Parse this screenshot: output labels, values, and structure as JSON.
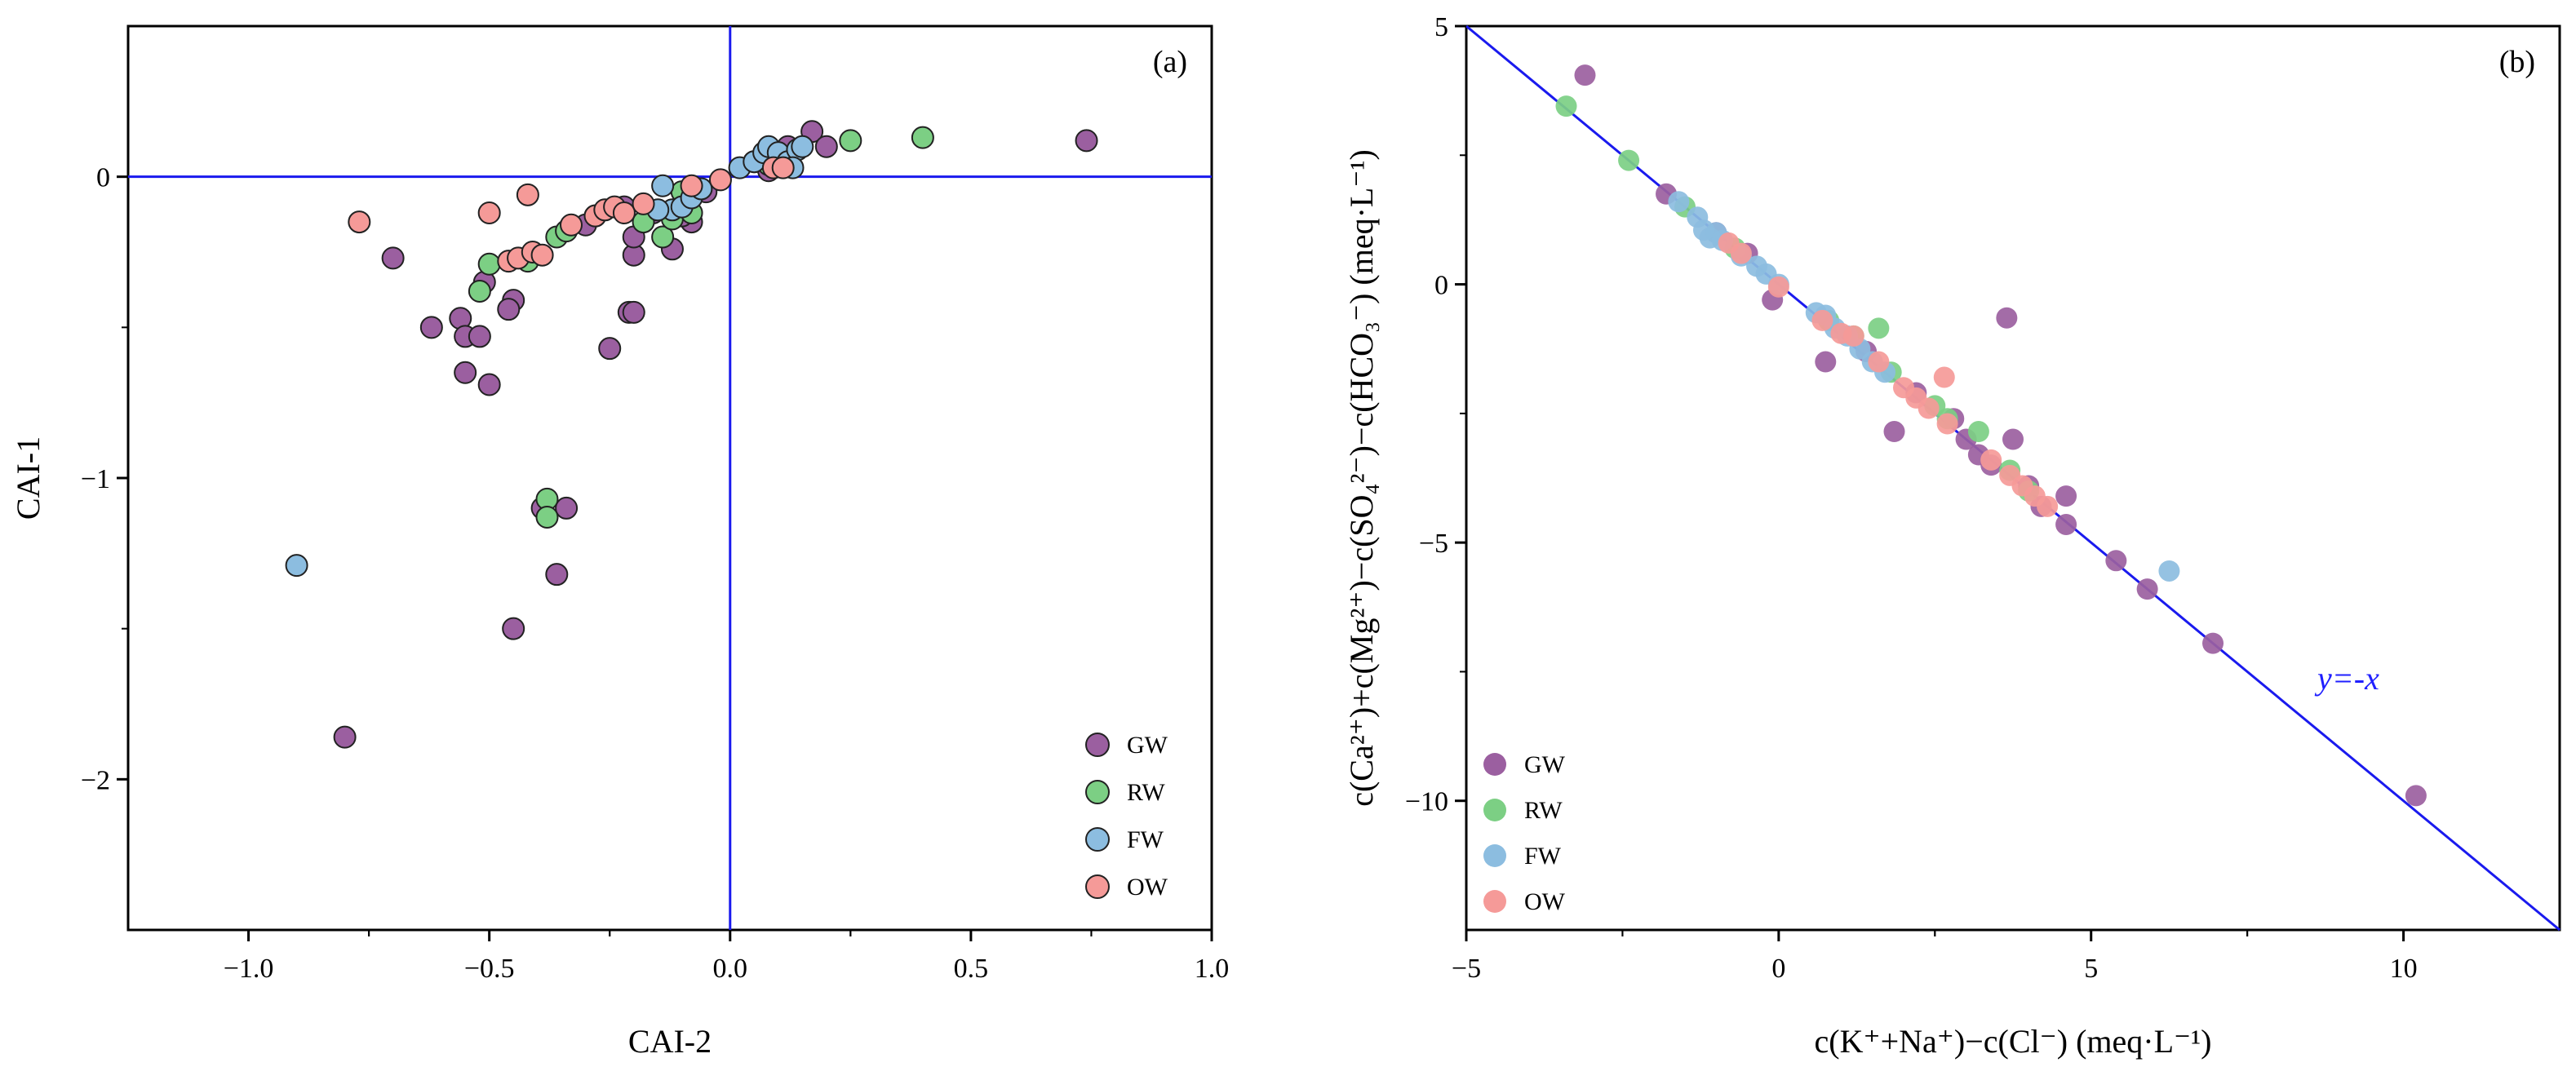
{
  "colors": {
    "GW": "#9b5fa0",
    "RW": "#7ccf84",
    "FW": "#8cbde0",
    "OW": "#f59a98",
    "reference": "#1a1aee",
    "axis": "#000000"
  },
  "chart_data": [
    {
      "type": "scatter",
      "panel": "(a)",
      "xlabel": "CAI-2",
      "ylabel": "CAI-1",
      "xlim": [
        -1.25,
        1.0
      ],
      "ylim": [
        -2.5,
        0.5
      ],
      "xticks": [
        -1.0,
        -0.5,
        0.0,
        0.5,
        1.0
      ],
      "xtick_labels": [
        "−1.0",
        "−0.5",
        "0.0",
        "0.5",
        "1.0"
      ],
      "yticks": [
        -2,
        -1,
        0
      ],
      "ytick_labels": [
        "−2",
        "−1",
        "0"
      ],
      "reference_lines": [
        {
          "type": "horizontal",
          "y": 0
        },
        {
          "type": "vertical",
          "x": 0
        }
      ],
      "legend_position": "bottom-right",
      "grid": false,
      "series": [
        {
          "name": "GW",
          "points": [
            [
              0.74,
              0.12
            ],
            [
              0.17,
              0.15
            ],
            [
              0.2,
              0.1
            ],
            [
              0.12,
              0.1
            ],
            [
              -0.7,
              -0.27
            ],
            [
              -0.62,
              -0.5
            ],
            [
              -0.56,
              -0.47
            ],
            [
              -0.55,
              -0.53
            ],
            [
              -0.52,
              -0.53
            ],
            [
              -0.55,
              -0.65
            ],
            [
              -0.5,
              -0.69
            ],
            [
              -0.51,
              -0.35
            ],
            [
              -0.45,
              -0.41
            ],
            [
              -0.46,
              -0.44
            ],
            [
              -0.25,
              -0.57
            ],
            [
              -0.21,
              -0.45
            ],
            [
              -0.2,
              -0.45
            ],
            [
              -0.2,
              -0.26
            ],
            [
              -0.2,
              -0.2
            ],
            [
              -0.12,
              -0.24
            ],
            [
              -0.08,
              -0.15
            ],
            [
              -0.16,
              -0.12
            ],
            [
              -0.1,
              -0.13
            ],
            [
              -0.39,
              -1.1
            ],
            [
              -0.34,
              -1.1
            ],
            [
              -0.36,
              -1.32
            ],
            [
              -0.45,
              -1.5
            ],
            [
              -0.8,
              -1.86
            ],
            [
              -0.28,
              -0.13
            ],
            [
              -0.3,
              -0.16
            ],
            [
              -0.22,
              -0.1
            ],
            [
              -0.05,
              -0.05
            ],
            [
              0.05,
              0.05
            ],
            [
              0.08,
              0.02
            ]
          ]
        },
        {
          "name": "RW",
          "points": [
            [
              0.4,
              0.13
            ],
            [
              0.25,
              0.12
            ],
            [
              0.1,
              0.06
            ],
            [
              0.08,
              0.04
            ],
            [
              -0.52,
              -0.38
            ],
            [
              -0.5,
              -0.29
            ],
            [
              -0.42,
              -0.28
            ],
            [
              -0.36,
              -0.2
            ],
            [
              -0.34,
              -0.18
            ],
            [
              -0.14,
              -0.2
            ],
            [
              -0.12,
              -0.14
            ],
            [
              -0.08,
              -0.12
            ],
            [
              -0.1,
              -0.05
            ],
            [
              -0.18,
              -0.15
            ],
            [
              -0.38,
              -1.07
            ],
            [
              -0.38,
              -1.13
            ]
          ]
        },
        {
          "name": "FW",
          "points": [
            [
              -0.9,
              -1.29
            ],
            [
              -0.14,
              -0.03
            ],
            [
              -0.12,
              -0.11
            ],
            [
              -0.1,
              -0.1
            ],
            [
              -0.08,
              -0.07
            ],
            [
              -0.15,
              -0.11
            ],
            [
              0.02,
              0.03
            ],
            [
              0.05,
              0.05
            ],
            [
              0.07,
              0.08
            ],
            [
              0.08,
              0.1
            ],
            [
              0.1,
              0.08
            ],
            [
              0.12,
              0.05
            ],
            [
              0.14,
              0.09
            ],
            [
              0.15,
              0.1
            ],
            [
              0.13,
              0.03
            ],
            [
              -0.06,
              -0.04
            ]
          ]
        },
        {
          "name": "OW",
          "points": [
            [
              -0.77,
              -0.15
            ],
            [
              -0.5,
              -0.12
            ],
            [
              -0.42,
              -0.06
            ],
            [
              -0.46,
              -0.28
            ],
            [
              -0.44,
              -0.27
            ],
            [
              -0.41,
              -0.25
            ],
            [
              -0.39,
              -0.26
            ],
            [
              -0.33,
              -0.16
            ],
            [
              -0.28,
              -0.13
            ],
            [
              -0.26,
              -0.11
            ],
            [
              -0.24,
              -0.1
            ],
            [
              -0.22,
              -0.12
            ],
            [
              -0.18,
              -0.09
            ],
            [
              -0.08,
              -0.03
            ],
            [
              -0.02,
              -0.01
            ],
            [
              0.09,
              0.03
            ],
            [
              0.11,
              0.03
            ]
          ]
        }
      ]
    },
    {
      "type": "scatter",
      "panel": "(b)",
      "xlabel": "c(K⁺+Na⁺)−c(Cl⁻) (meq·L⁻¹)",
      "ylabel": "c(Ca²⁺)+c(Mg²⁺)−c(SO₄²⁻)−c(HCO₃⁻) (meq·L⁻¹)",
      "xlim": [
        -5,
        12.5
      ],
      "ylim": [
        -12.5,
        5
      ],
      "xticks": [
        -5,
        0,
        5,
        10
      ],
      "xtick_labels": [
        "−5",
        "0",
        "5",
        "10"
      ],
      "yticks": [
        -10,
        -5,
        0,
        5
      ],
      "ytick_labels": [
        "−10",
        "−5",
        "0",
        "5"
      ],
      "reference_lines": [
        {
          "type": "y=-x",
          "label": "y=-x"
        }
      ],
      "legend_position": "bottom-left",
      "grid": false,
      "series": [
        {
          "name": "GW",
          "points": [
            [
              -3.1,
              4.05
            ],
            [
              -1.8,
              1.75
            ],
            [
              -1.0,
              1.0
            ],
            [
              -0.5,
              0.6
            ],
            [
              -0.1,
              -0.3
            ],
            [
              0.75,
              -1.5
            ],
            [
              1.4,
              -1.3
            ],
            [
              1.85,
              -2.85
            ],
            [
              2.2,
              -2.1
            ],
            [
              2.8,
              -2.6
            ],
            [
              3.0,
              -3.0
            ],
            [
              3.2,
              -3.3
            ],
            [
              3.4,
              -3.5
            ],
            [
              3.65,
              -0.65
            ],
            [
              3.75,
              -3.0
            ],
            [
              4.0,
              -3.9
            ],
            [
              4.2,
              -4.3
            ],
            [
              4.6,
              -4.1
            ],
            [
              4.6,
              -4.65
            ],
            [
              5.4,
              -5.35
            ],
            [
              5.9,
              -5.9
            ],
            [
              6.95,
              -6.95
            ],
            [
              10.2,
              -9.9
            ]
          ]
        },
        {
          "name": "RW",
          "points": [
            [
              -3.4,
              3.45
            ],
            [
              -2.4,
              2.4
            ],
            [
              -1.5,
              1.5
            ],
            [
              -0.7,
              0.7
            ],
            [
              0.8,
              -0.7
            ],
            [
              1.2,
              -1.0
            ],
            [
              1.6,
              -0.85
            ],
            [
              1.8,
              -1.7
            ],
            [
              2.5,
              -2.35
            ],
            [
              2.7,
              -2.6
            ],
            [
              3.2,
              -2.85
            ],
            [
              3.7,
              -3.6
            ],
            [
              4.0,
              -4.0
            ]
          ]
        },
        {
          "name": "FW",
          "points": [
            [
              -1.6,
              1.6
            ],
            [
              -1.3,
              1.3
            ],
            [
              -1.2,
              1.05
            ],
            [
              -1.1,
              0.9
            ],
            [
              -1.0,
              1.0
            ],
            [
              -0.9,
              0.85
            ],
            [
              -0.6,
              0.55
            ],
            [
              -0.35,
              0.35
            ],
            [
              -0.2,
              0.2
            ],
            [
              0.0,
              0.0
            ],
            [
              0.6,
              -0.55
            ],
            [
              0.75,
              -0.6
            ],
            [
              0.9,
              -0.85
            ],
            [
              1.1,
              -1.0
            ],
            [
              1.3,
              -1.25
            ],
            [
              1.5,
              -1.5
            ],
            [
              1.7,
              -1.7
            ],
            [
              6.25,
              -5.55
            ]
          ]
        },
        {
          "name": "OW",
          "points": [
            [
              -0.8,
              0.8
            ],
            [
              -0.6,
              0.6
            ],
            [
              0.0,
              -0.05
            ],
            [
              0.7,
              -0.7
            ],
            [
              1.0,
              -0.95
            ],
            [
              1.2,
              -1.0
            ],
            [
              1.6,
              -1.5
            ],
            [
              2.0,
              -2.0
            ],
            [
              2.2,
              -2.2
            ],
            [
              2.4,
              -2.4
            ],
            [
              2.65,
              -1.8
            ],
            [
              2.7,
              -2.7
            ],
            [
              3.4,
              -3.4
            ],
            [
              3.7,
              -3.7
            ],
            [
              3.9,
              -3.9
            ],
            [
              4.1,
              -4.1
            ],
            [
              4.3,
              -4.3
            ]
          ]
        }
      ]
    }
  ]
}
